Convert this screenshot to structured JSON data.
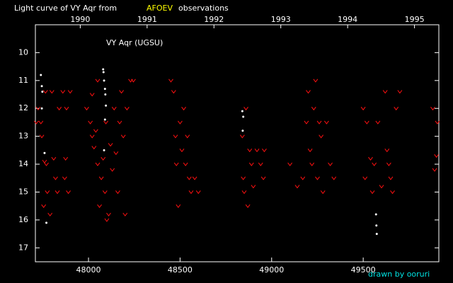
{
  "chart_data": {
    "type": "scatter",
    "title": {
      "before": "Light curve of VY Aqr from",
      "highlight": "AFOEV",
      "after": "observations"
    },
    "annotation": "VY Aqr (UGSU)",
    "credit": "drawn by ooruri",
    "xlim": [
      47710,
      49913
    ],
    "ylim": [
      17.5,
      9.0
    ],
    "xticks": [
      48000,
      48500,
      49000,
      49500
    ],
    "yticks": [
      10,
      11,
      12,
      13,
      14,
      15,
      16,
      17
    ],
    "x2ticks": [
      {
        "value": 47955,
        "label": "1990"
      },
      {
        "value": 48320,
        "label": "1991"
      },
      {
        "value": 48685,
        "label": "1992"
      },
      {
        "value": 49050,
        "label": "1993"
      },
      {
        "value": 49415,
        "label": "1994"
      },
      {
        "value": 49780,
        "label": "1995"
      }
    ],
    "series": [
      {
        "marker": "v",
        "color": "#ff1010",
        "x": [
          47715,
          47725,
          47740,
          47745,
          47760,
          47770,
          47775,
          47755,
          47790,
          47765,
          47800,
          47810,
          47820,
          47830,
          47840,
          47860,
          47880,
          47875,
          47890,
          47900,
          47870,
          47990,
          48010,
          48020,
          48030,
          48040,
          48050,
          48060,
          48070,
          48080,
          48090,
          48095,
          48100,
          48110,
          48120,
          48130,
          48140,
          48150,
          48160,
          48170,
          48180,
          48190,
          48200,
          48210,
          48230,
          48245,
          48020,
          48050,
          48450,
          48465,
          48475,
          48480,
          48490,
          48500,
          48510,
          48520,
          48530,
          48540,
          48550,
          48560,
          48580,
          48600,
          48840,
          48845,
          48850,
          48860,
          48870,
          48880,
          48890,
          48900,
          48920,
          48940,
          48955,
          48960,
          49100,
          49140,
          49170,
          49190,
          49200,
          49210,
          49220,
          49230,
          49240,
          49250,
          49260,
          49270,
          49280,
          49300,
          49320,
          49340,
          49500,
          49510,
          49520,
          49540,
          49550,
          49560,
          49580,
          49600,
          49620,
          49630,
          49640,
          49650,
          49660,
          49680,
          49700,
          49880,
          49890,
          49900,
          49905
        ],
        "values": [
          12.5,
          12.0,
          12.5,
          13.0,
          13.9,
          14.0,
          15.0,
          15.5,
          15.8,
          11.4,
          11.4,
          13.8,
          14.5,
          15.0,
          12.0,
          11.4,
          12.0,
          13.8,
          15.0,
          11.4,
          14.5,
          12.0,
          12.5,
          13.0,
          13.4,
          12.8,
          14.0,
          15.5,
          14.5,
          13.8,
          15.0,
          12.5,
          16.0,
          15.8,
          13.3,
          14.2,
          12.0,
          13.6,
          15.0,
          12.5,
          11.4,
          13.0,
          15.8,
          12.0,
          11.0,
          11.0,
          11.5,
          11.0,
          11.0,
          11.4,
          13.0,
          14.0,
          15.5,
          12.5,
          13.5,
          12.0,
          14.0,
          13.0,
          14.5,
          15.0,
          14.5,
          15.0,
          13.0,
          14.5,
          15.0,
          12.0,
          15.5,
          13.5,
          14.0,
          14.8,
          13.5,
          14.0,
          14.5,
          13.5,
          14.0,
          14.8,
          14.5,
          12.5,
          11.4,
          13.5,
          14.0,
          12.0,
          11.0,
          14.5,
          12.5,
          13.0,
          15.0,
          12.5,
          14.0,
          14.5,
          12.0,
          14.5,
          12.5,
          13.8,
          15.0,
          14.0,
          12.5,
          14.8,
          11.4,
          13.5,
          14.0,
          14.5,
          15.0,
          12.0,
          11.4,
          12.0,
          14.2,
          13.7,
          12.5
        ]
      },
      {
        "marker": "dot",
        "color": "#ffffff",
        "x": [
          47740,
          47745,
          47748,
          47745,
          47760,
          47770,
          48080,
          48082,
          48085,
          48090,
          48092,
          48095,
          48090,
          48085,
          48840,
          48845,
          48842,
          49570,
          49572,
          49574
        ],
        "values": [
          10.8,
          11.2,
          11.4,
          12.0,
          13.6,
          16.1,
          10.6,
          10.7,
          11.0,
          11.3,
          11.5,
          11.9,
          12.4,
          13.5,
          12.1,
          12.3,
          12.8,
          15.8,
          16.2,
          16.5
        ]
      }
    ]
  }
}
